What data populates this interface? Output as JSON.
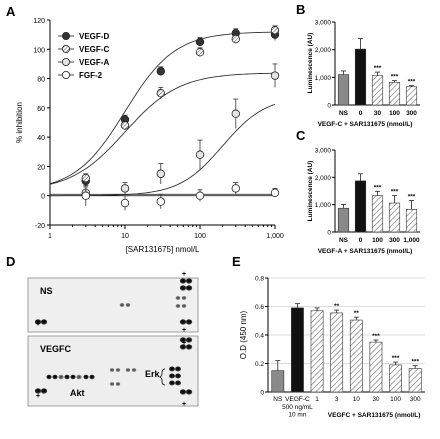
{
  "panels": {
    "A": "A",
    "B": "B",
    "C": "C",
    "D": "D",
    "E": "E"
  },
  "chart_data": [
    {
      "panel": "A",
      "type": "line",
      "ylabel": "% inhibition",
      "xlabel": "[SAR131675] nmol/L",
      "x_scale": "log",
      "xlim": [
        1,
        1000
      ],
      "ylim": [
        -20,
        120
      ],
      "x_ticks": [
        1,
        10,
        100,
        1000
      ],
      "x_tick_labels": [
        "1",
        "10",
        "100",
        "1,000"
      ],
      "y_ticks": [
        -20,
        0,
        20,
        40,
        60,
        80,
        100,
        120
      ],
      "legend_position": "top-left",
      "x": [
        3,
        10,
        30,
        100,
        300,
        1000
      ],
      "series": [
        {
          "name": "VEGF-D",
          "values": [
            10,
            52,
            85,
            105,
            111,
            110
          ],
          "errors": [
            3,
            3,
            3,
            3,
            3,
            4
          ],
          "color": "#333333",
          "marker": "filled-dark"
        },
        {
          "name": "VEGF-C",
          "values": [
            12,
            48,
            70,
            98,
            107,
            113
          ],
          "errors": [
            3,
            3,
            4,
            3,
            3,
            3
          ],
          "color": "#555555",
          "marker": "hatched"
        },
        {
          "name": "VEGF-A",
          "values": [
            2,
            5,
            15,
            28,
            56,
            82
          ],
          "errors": [
            4,
            4,
            7,
            10,
            10,
            8
          ],
          "color": "#666666",
          "marker": "light-hatched"
        },
        {
          "name": "FGF-2",
          "values": [
            0,
            -5,
            -4,
            0,
            5,
            2
          ],
          "errors": [
            7,
            5,
            5,
            4,
            4,
            3
          ],
          "color": "#888888",
          "marker": "open"
        }
      ],
      "fits": [
        {
          "name": "VEGF-D",
          "bottom": 3,
          "top": 112,
          "ec50": 10,
          "hill": 1.3
        },
        {
          "name": "VEGF-C",
          "bottom": 3,
          "top": 84,
          "ec50": 10,
          "hill": 1.2
        },
        {
          "name": "VEGF-A",
          "bottom": 0,
          "top": 68,
          "ec50": 200,
          "hill": 1.5
        },
        {
          "name": "FGF-2",
          "bottom": 1,
          "top": 1,
          "ec50": 100,
          "hill": 1
        }
      ]
    },
    {
      "panel": "B",
      "type": "bar",
      "ylabel": "Luminescence (AU)",
      "xlabel": "VEGF-C + SAR131675 (nmol/L)",
      "categories": [
        "NS",
        "0",
        "30",
        "100",
        "300"
      ],
      "values": [
        1100,
        2020,
        1060,
        820,
        660
      ],
      "errors": [
        130,
        380,
        130,
        60,
        40
      ],
      "significance": [
        "",
        "",
        "***",
        "***",
        "***"
      ],
      "fills": [
        "gray",
        "black",
        "hatched",
        "hatched",
        "hatched"
      ],
      "ylim": [
        0,
        3000
      ],
      "y_ticks": [
        0,
        1000,
        2000,
        3000
      ]
    },
    {
      "panel": "C",
      "type": "bar",
      "ylabel": "Luminescence (AU)",
      "xlabel": "VEGF-A + SAR131675 (nmol/L)",
      "categories": [
        "NS",
        "0",
        "100",
        "300",
        "1,000"
      ],
      "values": [
        870,
        1870,
        1330,
        1060,
        830
      ],
      "errors": [
        140,
        260,
        160,
        270,
        320
      ],
      "significance": [
        "",
        "",
        "***",
        "***",
        "***"
      ],
      "fills": [
        "gray",
        "black",
        "hatched",
        "hatched",
        "hatched"
      ],
      "ylim": [
        0,
        3000
      ],
      "y_ticks": [
        0,
        1000,
        2000,
        3000
      ]
    },
    {
      "panel": "E",
      "type": "bar",
      "ylabel": "O.D (450 nm)",
      "categories": [
        "NS",
        "VEGF-C",
        "1",
        "3",
        "10",
        "30",
        "100",
        "300"
      ],
      "vegfc_note": [
        "500 ng/mL",
        "10 mn"
      ],
      "group_label": "VEGFC + SAR131675 (nmol/L)",
      "values": [
        0.15,
        0.59,
        0.57,
        0.555,
        0.505,
        0.35,
        0.19,
        0.165
      ],
      "errors": [
        0.07,
        0.03,
        0.02,
        0.02,
        0.02,
        0.015,
        0.02,
        0.02
      ],
      "significance": [
        "",
        "",
        "",
        "**",
        "**",
        "***",
        "***",
        "***"
      ],
      "fills": [
        "gray",
        "black",
        "hatched",
        "hatched",
        "hatched",
        "hatched",
        "hatched",
        "hatched"
      ],
      "ylim": [
        0,
        0.8
      ],
      "y_ticks": [
        0,
        0.2,
        0.4,
        0.6,
        0.8
      ],
      "y_tick_labels": [
        "0",
        "0.2",
        "0.4",
        "0.6",
        "0.8"
      ],
      "grid": true
    }
  ],
  "blot": {
    "top_label": "NS",
    "bottom_label": "VEGFC",
    "akt_label": "Akt",
    "erk_label": "Erk",
    "plus": "+"
  }
}
